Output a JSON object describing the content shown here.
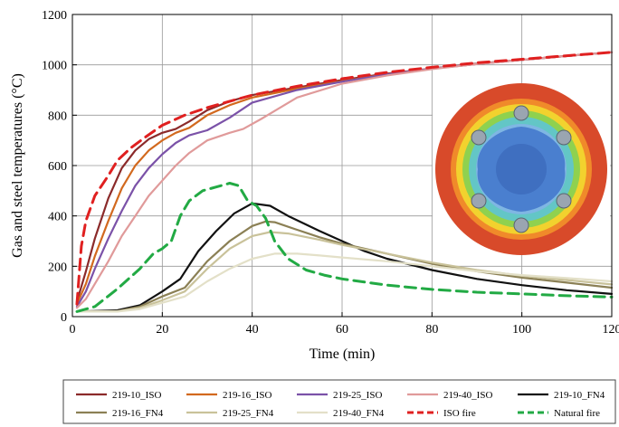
{
  "chart_data": {
    "type": "line",
    "xlabel": "Time (min)",
    "ylabel": "Gas and steel temperatures (°C)",
    "xlim": [
      0,
      120
    ],
    "ylim": [
      0,
      1200
    ],
    "x_ticks": [
      0,
      20,
      40,
      60,
      80,
      100,
      120
    ],
    "y_ticks": [
      0,
      200,
      400,
      600,
      800,
      1000,
      1200
    ],
    "grid": true,
    "legend_position": "bottom",
    "inset_image": "cross-section temperature contour (circular section)",
    "series": [
      {
        "name": "219-10_ISO",
        "color": "#8b2a2a",
        "dash": "solid",
        "points": [
          [
            1,
            60
          ],
          [
            3,
            180
          ],
          [
            5,
            310
          ],
          [
            8,
            470
          ],
          [
            11,
            590
          ],
          [
            14,
            660
          ],
          [
            17,
            705
          ],
          [
            20,
            730
          ],
          [
            23,
            745
          ],
          [
            26,
            775
          ],
          [
            30,
            820
          ],
          [
            35,
            855
          ],
          [
            40,
            880
          ],
          [
            50,
            910
          ],
          [
            60,
            940
          ],
          [
            70,
            965
          ],
          [
            80,
            985
          ],
          [
            90,
            1005
          ],
          [
            100,
            1020
          ],
          [
            110,
            1035
          ],
          [
            120,
            1050
          ]
        ]
      },
      {
        "name": "219-16_ISO",
        "color": "#d2691e",
        "dash": "solid",
        "points": [
          [
            1,
            50
          ],
          [
            3,
            130
          ],
          [
            5,
            240
          ],
          [
            8,
            380
          ],
          [
            11,
            510
          ],
          [
            14,
            600
          ],
          [
            17,
            660
          ],
          [
            20,
            700
          ],
          [
            23,
            730
          ],
          [
            26,
            750
          ],
          [
            30,
            800
          ],
          [
            35,
            840
          ],
          [
            40,
            870
          ],
          [
            50,
            905
          ],
          [
            60,
            935
          ],
          [
            70,
            963
          ],
          [
            80,
            985
          ],
          [
            90,
            1003
          ],
          [
            100,
            1020
          ],
          [
            110,
            1035
          ],
          [
            120,
            1050
          ]
        ]
      },
      {
        "name": "219-25_ISO",
        "color": "#7b52a8",
        "dash": "solid",
        "points": [
          [
            1,
            40
          ],
          [
            3,
            100
          ],
          [
            5,
            190
          ],
          [
            8,
            310
          ],
          [
            11,
            420
          ],
          [
            14,
            520
          ],
          [
            17,
            590
          ],
          [
            20,
            645
          ],
          [
            23,
            690
          ],
          [
            26,
            720
          ],
          [
            30,
            740
          ],
          [
            35,
            790
          ],
          [
            40,
            850
          ],
          [
            50,
            900
          ],
          [
            60,
            933
          ],
          [
            70,
            962
          ],
          [
            80,
            985
          ],
          [
            90,
            1003
          ],
          [
            100,
            1020
          ],
          [
            110,
            1035
          ],
          [
            120,
            1050
          ]
        ]
      },
      {
        "name": "219-40_ISO",
        "color": "#e09a9a",
        "dash": "solid",
        "points": [
          [
            1,
            35
          ],
          [
            3,
            70
          ],
          [
            5,
            130
          ],
          [
            8,
            220
          ],
          [
            11,
            320
          ],
          [
            14,
            400
          ],
          [
            17,
            480
          ],
          [
            20,
            540
          ],
          [
            23,
            600
          ],
          [
            26,
            650
          ],
          [
            30,
            700
          ],
          [
            35,
            730
          ],
          [
            38,
            745
          ],
          [
            42,
            785
          ],
          [
            50,
            870
          ],
          [
            60,
            925
          ],
          [
            70,
            958
          ],
          [
            80,
            983
          ],
          [
            90,
            1003
          ],
          [
            100,
            1020
          ],
          [
            110,
            1035
          ],
          [
            120,
            1050
          ]
        ]
      },
      {
        "name": "219-10_FN4",
        "color": "#111111",
        "dash": "solid",
        "points": [
          [
            1,
            20
          ],
          [
            10,
            25
          ],
          [
            15,
            45
          ],
          [
            20,
            100
          ],
          [
            24,
            150
          ],
          [
            28,
            260
          ],
          [
            32,
            340
          ],
          [
            36,
            410
          ],
          [
            40,
            450
          ],
          [
            44,
            440
          ],
          [
            48,
            400
          ],
          [
            55,
            340
          ],
          [
            60,
            300
          ],
          [
            65,
            260
          ],
          [
            70,
            230
          ],
          [
            80,
            185
          ],
          [
            90,
            150
          ],
          [
            100,
            125
          ],
          [
            110,
            105
          ],
          [
            120,
            90
          ]
        ]
      },
      {
        "name": "219-16_FN4",
        "color": "#8b8055",
        "dash": "solid",
        "points": [
          [
            1,
            20
          ],
          [
            10,
            22
          ],
          [
            15,
            40
          ],
          [
            20,
            80
          ],
          [
            25,
            115
          ],
          [
            30,
            220
          ],
          [
            35,
            300
          ],
          [
            40,
            360
          ],
          [
            43,
            378
          ],
          [
            45,
            375
          ],
          [
            50,
            345
          ],
          [
            55,
            315
          ],
          [
            60,
            290
          ],
          [
            70,
            250
          ],
          [
            80,
            210
          ],
          [
            90,
            180
          ],
          [
            100,
            155
          ],
          [
            110,
            135
          ],
          [
            120,
            115
          ]
        ]
      },
      {
        "name": "219-25_FN4",
        "color": "#c9c29a",
        "dash": "solid",
        "points": [
          [
            1,
            20
          ],
          [
            10,
            21
          ],
          [
            15,
            35
          ],
          [
            20,
            65
          ],
          [
            25,
            100
          ],
          [
            30,
            190
          ],
          [
            35,
            270
          ],
          [
            40,
            320
          ],
          [
            44,
            336
          ],
          [
            48,
            330
          ],
          [
            55,
            305
          ],
          [
            60,
            285
          ],
          [
            70,
            250
          ],
          [
            80,
            215
          ],
          [
            90,
            185
          ],
          [
            100,
            162
          ],
          [
            110,
            145
          ],
          [
            120,
            128
          ]
        ]
      },
      {
        "name": "219-40_FN4",
        "color": "#e3e0c8",
        "dash": "solid",
        "points": [
          [
            1,
            20
          ],
          [
            10,
            20
          ],
          [
            15,
            30
          ],
          [
            20,
            55
          ],
          [
            25,
            80
          ],
          [
            30,
            140
          ],
          [
            35,
            190
          ],
          [
            40,
            230
          ],
          [
            45,
            250
          ],
          [
            50,
            250
          ],
          [
            55,
            243
          ],
          [
            60,
            235
          ],
          [
            70,
            220
          ],
          [
            80,
            200
          ],
          [
            90,
            180
          ],
          [
            100,
            165
          ],
          [
            110,
            153
          ],
          [
            120,
            140
          ]
        ]
      },
      {
        "name": "ISO fire",
        "color": "#e02020",
        "dash": "dashed",
        "points": [
          [
            1,
            50
          ],
          [
            2,
            280
          ],
          [
            3,
            380
          ],
          [
            5,
            480
          ],
          [
            8,
            560
          ],
          [
            10,
            620
          ],
          [
            13,
            670
          ],
          [
            16,
            710
          ],
          [
            20,
            760
          ],
          [
            25,
            800
          ],
          [
            30,
            830
          ],
          [
            35,
            855
          ],
          [
            40,
            880
          ],
          [
            50,
            915
          ],
          [
            60,
            945
          ],
          [
            70,
            970
          ],
          [
            80,
            990
          ],
          [
            90,
            1008
          ],
          [
            100,
            1022
          ],
          [
            110,
            1036
          ],
          [
            120,
            1050
          ]
        ]
      },
      {
        "name": "Natural fire",
        "color": "#22aa44",
        "dash": "dashed",
        "points": [
          [
            1,
            20
          ],
          [
            5,
            40
          ],
          [
            10,
            110
          ],
          [
            15,
            190
          ],
          [
            18,
            250
          ],
          [
            20,
            270
          ],
          [
            22,
            300
          ],
          [
            24,
            400
          ],
          [
            26,
            460
          ],
          [
            29,
            500
          ],
          [
            32,
            515
          ],
          [
            35,
            530
          ],
          [
            37,
            520
          ],
          [
            39,
            460
          ],
          [
            41,
            440
          ],
          [
            43,
            390
          ],
          [
            45,
            300
          ],
          [
            48,
            230
          ],
          [
            52,
            185
          ],
          [
            56,
            165
          ],
          [
            60,
            150
          ],
          [
            70,
            125
          ],
          [
            80,
            108
          ],
          [
            90,
            97
          ],
          [
            100,
            90
          ],
          [
            110,
            83
          ],
          [
            120,
            78
          ]
        ]
      }
    ]
  }
}
